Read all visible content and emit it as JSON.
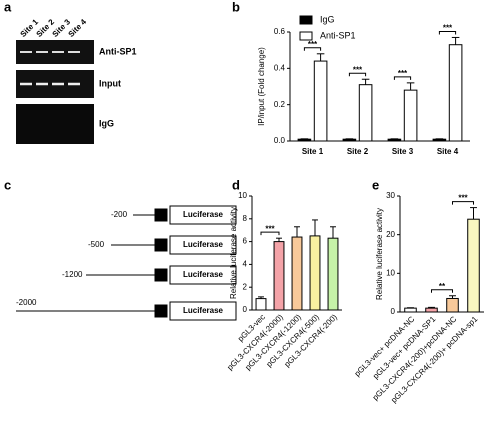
{
  "panel_labels": [
    "a",
    "b",
    "c",
    "d",
    "e"
  ],
  "gel": {
    "lanes": [
      "Site 1",
      "Site 2",
      "Site 3",
      "Site 4"
    ],
    "rows": [
      "Anti-SP1",
      "Input",
      "IgG"
    ]
  },
  "diagram": {
    "constructs": [
      {
        "label": "-200",
        "reporter": "Luciferase"
      },
      {
        "label": "-500",
        "reporter": "Luciferase"
      },
      {
        "label": "-1200",
        "reporter": "Luciferase"
      },
      {
        "label": "-2000",
        "reporter": "Luciferase"
      }
    ]
  },
  "chart_data": [
    {
      "type": "bar",
      "y_label": "IP/input (Fold change)",
      "categories": [
        "Site 1",
        "Site 2",
        "Site 3",
        "Site 4"
      ],
      "series": [
        {
          "name": "IgG",
          "color": "#000000",
          "values": [
            0.01,
            0.01,
            0.01,
            0.01
          ],
          "errors": [
            0.002,
            0.002,
            0.002,
            0.002
          ]
        },
        {
          "name": "Anti-SP1",
          "color": "#ffffff",
          "values": [
            0.44,
            0.31,
            0.28,
            0.53
          ],
          "errors": [
            0.04,
            0.03,
            0.04,
            0.04
          ]
        }
      ],
      "significance": [
        "***",
        "***",
        "***",
        "***"
      ],
      "ylim": [
        0,
        0.6
      ],
      "yticks": [
        {
          "value": 0,
          "label": "0.0"
        },
        0.2,
        0.4,
        0.6
      ],
      "legend": "top-left"
    },
    {
      "type": "bar",
      "y_label": "Relative luciferase activity",
      "categories": [
        "pGL3-vec",
        "pGL3-CXCR4(-2000)",
        "pGL3-CXCR4(-1200)",
        "pGL3-CXCR4(-500)",
        "pGL3-CXCR4(-200)"
      ],
      "values": [
        1.0,
        6.0,
        6.4,
        6.5,
        6.3
      ],
      "errors": [
        0.15,
        0.3,
        0.9,
        1.4,
        1.0
      ],
      "colors": [
        "#ffffff",
        "#f4a3a8",
        "#f8c99a",
        "#f8f0a0",
        "#c6f2a8"
      ],
      "significance": [
        null,
        "***",
        null,
        null,
        null
      ],
      "ylim": [
        0,
        10
      ],
      "yticks": [
        0,
        2,
        4,
        6,
        8,
        10
      ]
    },
    {
      "type": "bar",
      "y_label": "Relative luciferase activity",
      "categories": [
        "pGL3-vec+ pcDNA-NC",
        "pGL3-vec+ pcDNA-SP1",
        "pGL3-CXCR4(-200)+pcDNA-NC",
        "pGL3-CXCR4(-200)+ pcDNA-sp1"
      ],
      "values": [
        1.0,
        1.0,
        3.5,
        24
      ],
      "errors": [
        0.1,
        0.2,
        0.7,
        3
      ],
      "colors": [
        "#ffffff",
        "#f4a3a8",
        "#f8c99a",
        "#f8f6c0"
      ],
      "significance": [
        null,
        null,
        "**",
        "***"
      ],
      "ylim": [
        0,
        30
      ],
      "yticks": [
        0,
        10,
        20,
        30
      ]
    }
  ]
}
